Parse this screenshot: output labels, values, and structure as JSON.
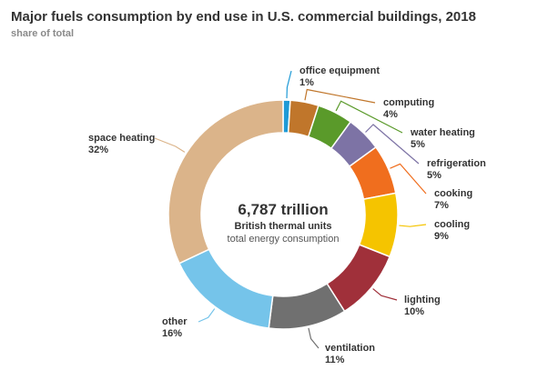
{
  "chart_data": {
    "type": "pie",
    "title": "Major fuels consumption by end use in U.S. commercial buildings, 2018",
    "subtitle": "share of total",
    "center": {
      "value": "6,787 trillion",
      "unit": "British thermal units",
      "caption": "total energy consumption"
    },
    "slices": [
      {
        "name": "office equipment",
        "value": 1,
        "label": "1%",
        "color": "#1f9ad6"
      },
      {
        "name": "computing",
        "value": 4,
        "label": "4%",
        "color": "#c0762b"
      },
      {
        "name": "water heating",
        "value": 5,
        "label": "5%",
        "color": "#5a9a2a"
      },
      {
        "name": "refrigeration",
        "value": 5,
        "label": "5%",
        "color": "#7d73a5"
      },
      {
        "name": "cooking",
        "value": 7,
        "label": "7%",
        "color": "#f06e1e"
      },
      {
        "name": "cooling",
        "value": 9,
        "label": "9%",
        "color": "#f5c400"
      },
      {
        "name": "lighting",
        "value": 10,
        "label": "10%",
        "color": "#a0303a"
      },
      {
        "name": "ventilation",
        "value": 11,
        "label": "11%",
        "color": "#707070"
      },
      {
        "name": "other",
        "value": 16,
        "label": "16%",
        "color": "#75c4ea"
      },
      {
        "name": "space heating",
        "value": 32,
        "label": "32%",
        "color": "#dbb48a"
      }
    ]
  }
}
